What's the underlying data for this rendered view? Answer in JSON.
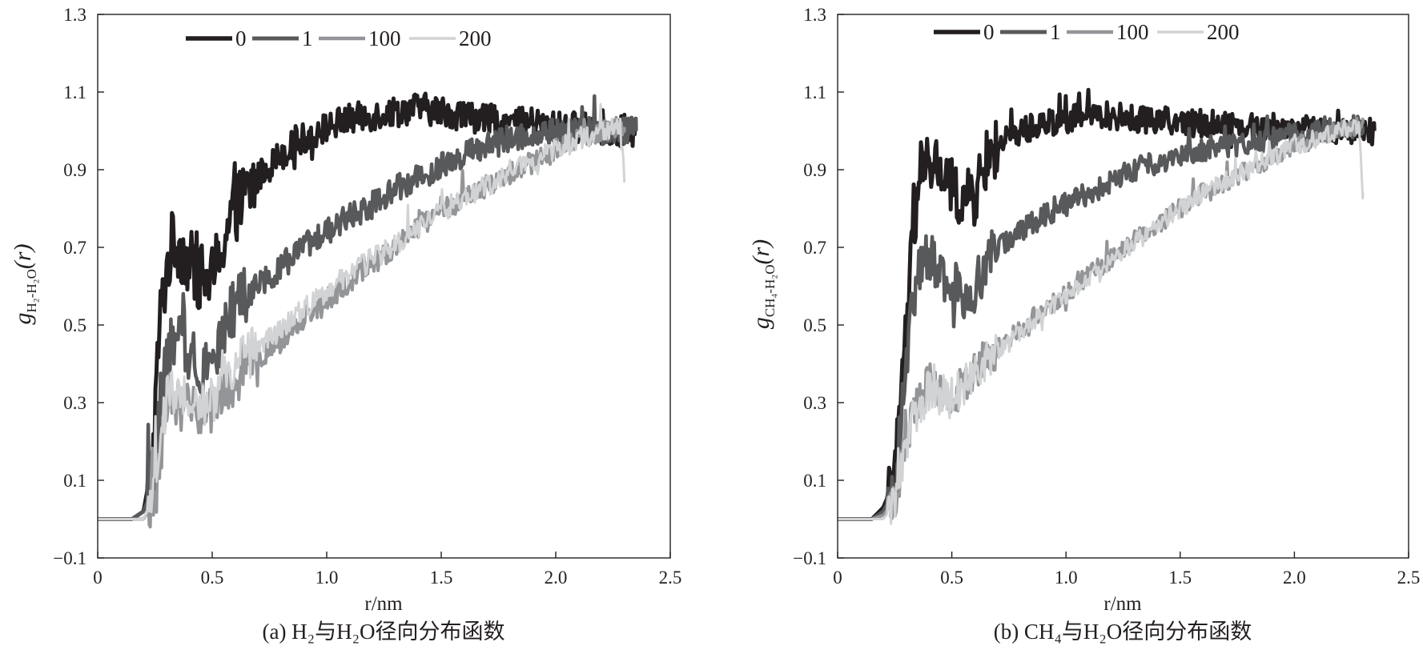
{
  "chart_data": [
    {
      "type": "line",
      "panel": "a",
      "caption": "(a) H₂与H₂O径向分布函数",
      "ylabel": {
        "var": "g",
        "sub": "H₂-H₂O",
        "arg": "(r)"
      },
      "xlabel": "r/nm",
      "xlim": [
        0,
        2.5
      ],
      "ylim": [
        -0.1,
        1.3
      ],
      "xticks": [
        "0",
        "0.5",
        "1.0",
        "1.5",
        "2.0",
        "2.5"
      ],
      "xtick_values": [
        0,
        0.5,
        1.0,
        1.5,
        2.0,
        2.5
      ],
      "yticks": [
        "−0.1",
        "0.1",
        "0.3",
        "0.5",
        "0.7",
        "0.9",
        "1.1",
        "1.3"
      ],
      "ytick_values": [
        -0.1,
        0.1,
        0.3,
        0.5,
        0.7,
        0.9,
        1.1,
        1.3
      ],
      "legend_position": "top",
      "series": [
        {
          "name": "0",
          "color": "#231f20",
          "x": [
            0,
            0.15,
            0.2,
            0.24,
            0.27,
            0.3,
            0.33,
            0.36,
            0.4,
            0.45,
            0.5,
            0.55,
            0.6,
            0.7,
            0.8,
            0.9,
            1.0,
            1.1,
            1.2,
            1.3,
            1.4,
            1.5,
            1.6,
            1.7,
            1.8,
            1.9,
            2.0,
            2.1,
            2.2,
            2.3,
            2.35
          ],
          "y": [
            0,
            0,
            0.02,
            0.15,
            0.5,
            0.64,
            0.72,
            0.7,
            0.66,
            0.62,
            0.62,
            0.72,
            0.8,
            0.88,
            0.94,
            0.98,
            1.01,
            1.03,
            1.04,
            1.05,
            1.06,
            1.05,
            1.04,
            1.03,
            1.02,
            1.02,
            1.01,
            1.01,
            1.0,
            1.0,
            1.0
          ],
          "noise": 0.04
        },
        {
          "name": "1",
          "color": "#58595b",
          "x": [
            0,
            0.15,
            0.2,
            0.25,
            0.28,
            0.32,
            0.36,
            0.4,
            0.45,
            0.5,
            0.55,
            0.6,
            0.7,
            0.8,
            0.9,
            1.0,
            1.1,
            1.2,
            1.3,
            1.4,
            1.5,
            1.6,
            1.7,
            1.8,
            1.9,
            2.0,
            2.1,
            2.2,
            2.3,
            2.35
          ],
          "y": [
            0,
            0,
            0.02,
            0.1,
            0.35,
            0.44,
            0.45,
            0.43,
            0.4,
            0.41,
            0.48,
            0.55,
            0.6,
            0.65,
            0.7,
            0.74,
            0.78,
            0.81,
            0.85,
            0.88,
            0.91,
            0.94,
            0.96,
            0.98,
            0.99,
            1.0,
            1.0,
            1.0,
            1.0,
            1.0
          ],
          "noise": 0.035
        },
        {
          "name": "100",
          "color": "#939598",
          "x": [
            0,
            0.15,
            0.2,
            0.25,
            0.28,
            0.3,
            0.35,
            0.4,
            0.45,
            0.5,
            0.55,
            0.6,
            0.7,
            0.8,
            0.9,
            1.0,
            1.1,
            1.2,
            1.3,
            1.4,
            1.5,
            1.6,
            1.7,
            1.8,
            1.9,
            2.0,
            2.1,
            2.2,
            2.3
          ],
          "y": [
            0,
            0,
            0,
            0.05,
            0.2,
            0.27,
            0.3,
            0.28,
            0.27,
            0.28,
            0.33,
            0.36,
            0.41,
            0.46,
            0.51,
            0.56,
            0.61,
            0.66,
            0.7,
            0.75,
            0.79,
            0.83,
            0.86,
            0.89,
            0.92,
            0.95,
            0.98,
            1.0,
            1.01
          ],
          "noise": 0.03
        },
        {
          "name": "200",
          "color": "#d1d3d4",
          "x": [
            0,
            0.15,
            0.2,
            0.25,
            0.28,
            0.3,
            0.35,
            0.4,
            0.45,
            0.5,
            0.55,
            0.6,
            0.7,
            0.8,
            0.9,
            1.0,
            1.1,
            1.2,
            1.3,
            1.4,
            1.5,
            1.6,
            1.7,
            1.8,
            1.9,
            2.0,
            2.1,
            2.2,
            2.28,
            2.3
          ],
          "y": [
            0,
            0,
            0,
            0.06,
            0.24,
            0.3,
            0.33,
            0.31,
            0.3,
            0.31,
            0.36,
            0.39,
            0.44,
            0.49,
            0.54,
            0.59,
            0.63,
            0.67,
            0.71,
            0.75,
            0.79,
            0.83,
            0.86,
            0.89,
            0.92,
            0.95,
            0.98,
            1.0,
            1.02,
            0.87
          ],
          "noise": 0.03
        }
      ]
    },
    {
      "type": "line",
      "panel": "b",
      "caption": "(b) CH₄与H₂O径向分布函数",
      "ylabel": {
        "var": "g",
        "sub": "CH₄-H₂O",
        "arg": "(r)"
      },
      "xlabel": "r/nm",
      "xlim": [
        0,
        2.5
      ],
      "ylim": [
        -0.1,
        1.3
      ],
      "xticks": [
        "0",
        "0.5",
        "1.0",
        "1.5",
        "2.0",
        "2.5"
      ],
      "xtick_values": [
        0,
        0.5,
        1.0,
        1.5,
        2.0,
        2.5
      ],
      "yticks": [
        "−0.1",
        "0.1",
        "0.3",
        "0.5",
        "0.7",
        "0.9",
        "1.1",
        "1.3"
      ],
      "ytick_values": [
        -0.1,
        0.1,
        0.3,
        0.5,
        0.7,
        0.9,
        1.1,
        1.3
      ],
      "legend_position": "top",
      "series": [
        {
          "name": "0",
          "color": "#231f20",
          "x": [
            0,
            0.15,
            0.2,
            0.25,
            0.3,
            0.35,
            0.4,
            0.45,
            0.5,
            0.55,
            0.6,
            0.65,
            0.7,
            0.8,
            0.9,
            1.0,
            1.1,
            1.2,
            1.3,
            1.4,
            1.5,
            1.6,
            1.7,
            1.8,
            1.9,
            2.0,
            2.1,
            2.2,
            2.3,
            2.35
          ],
          "y": [
            0,
            0,
            0.03,
            0.1,
            0.5,
            0.85,
            0.92,
            0.9,
            0.85,
            0.82,
            0.83,
            0.92,
            0.96,
            1.0,
            1.02,
            1.03,
            1.04,
            1.04,
            1.03,
            1.03,
            1.02,
            1.02,
            1.02,
            1.01,
            1.01,
            1.01,
            1.0,
            1.0,
            1.0,
            1.0
          ],
          "noise": 0.035
        },
        {
          "name": "1",
          "color": "#58595b",
          "x": [
            0,
            0.15,
            0.2,
            0.25,
            0.3,
            0.35,
            0.4,
            0.45,
            0.5,
            0.55,
            0.6,
            0.65,
            0.7,
            0.8,
            0.9,
            1.0,
            1.1,
            1.2,
            1.3,
            1.4,
            1.5,
            1.6,
            1.7,
            1.8,
            1.9,
            2.0,
            2.1,
            2.2,
            2.3
          ],
          "y": [
            0,
            0,
            0.02,
            0.08,
            0.4,
            0.65,
            0.68,
            0.64,
            0.6,
            0.58,
            0.6,
            0.66,
            0.7,
            0.74,
            0.78,
            0.81,
            0.84,
            0.87,
            0.9,
            0.92,
            0.94,
            0.95,
            0.96,
            0.97,
            0.98,
            0.99,
            1.0,
            1.01,
            1.01
          ],
          "noise": 0.03
        },
        {
          "name": "100",
          "color": "#939598",
          "x": [
            0,
            0.15,
            0.2,
            0.25,
            0.3,
            0.35,
            0.4,
            0.45,
            0.5,
            0.6,
            0.7,
            0.8,
            0.9,
            1.0,
            1.1,
            1.2,
            1.3,
            1.4,
            1.5,
            1.6,
            1.7,
            1.8,
            1.9,
            2.0,
            2.1,
            2.2,
            2.3
          ],
          "y": [
            0,
            0,
            0.01,
            0.05,
            0.2,
            0.3,
            0.35,
            0.33,
            0.32,
            0.38,
            0.44,
            0.49,
            0.54,
            0.58,
            0.63,
            0.67,
            0.72,
            0.76,
            0.8,
            0.84,
            0.87,
            0.9,
            0.93,
            0.96,
            0.98,
            1.0,
            1.02
          ],
          "noise": 0.025
        },
        {
          "name": "200",
          "color": "#d1d3d4",
          "x": [
            0,
            0.15,
            0.2,
            0.25,
            0.3,
            0.35,
            0.4,
            0.45,
            0.5,
            0.6,
            0.7,
            0.8,
            0.9,
            1.0,
            1.1,
            1.2,
            1.3,
            1.4,
            1.5,
            1.6,
            1.7,
            1.8,
            1.9,
            2.0,
            2.1,
            2.2,
            2.28,
            2.3
          ],
          "y": [
            0,
            0,
            0.0,
            0.04,
            0.18,
            0.28,
            0.33,
            0.32,
            0.31,
            0.37,
            0.43,
            0.48,
            0.53,
            0.58,
            0.62,
            0.67,
            0.71,
            0.76,
            0.8,
            0.84,
            0.87,
            0.9,
            0.93,
            0.96,
            0.98,
            1.0,
            1.02,
            0.84
          ],
          "noise": 0.025
        }
      ]
    }
  ]
}
